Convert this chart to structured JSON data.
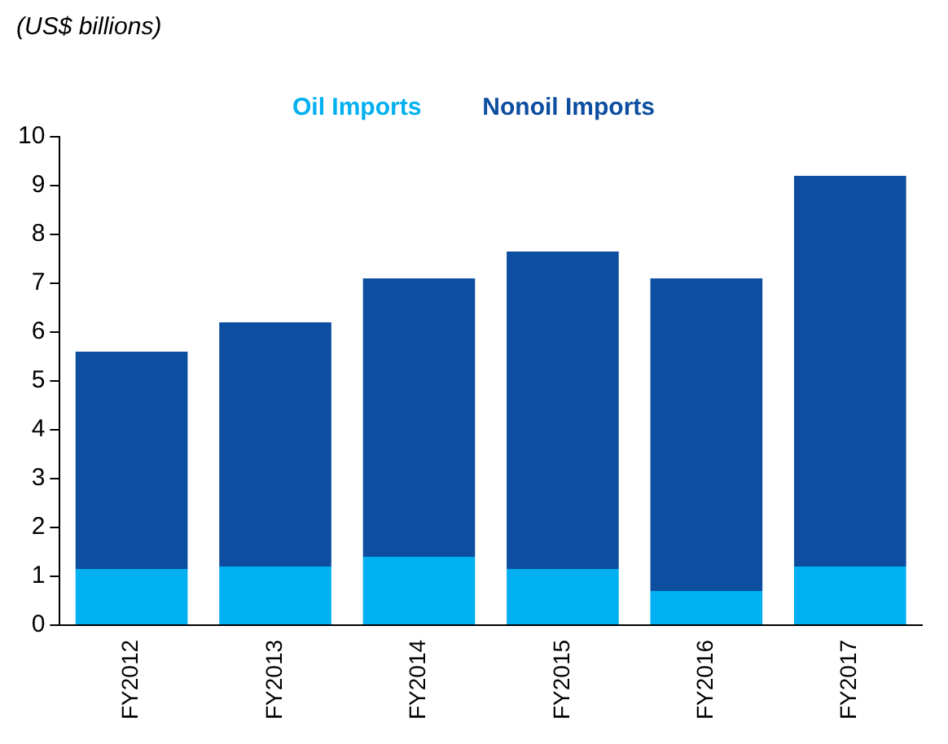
{
  "chart_data": {
    "type": "bar",
    "ylabel": "(US$ billions)",
    "stacked": true,
    "legend": "top",
    "grid": false,
    "categories": [
      "FY2012",
      "FY2013",
      "FY2014",
      "FY2015",
      "FY2016",
      "FY2017"
    ],
    "series": [
      {
        "name": "Oil Imports",
        "color": "#00b0f0",
        "values": [
          1.15,
          1.2,
          1.4,
          1.15,
          0.7,
          1.2
        ]
      },
      {
        "name": "Nonoil Imports",
        "color": "#0d4ea0",
        "values": [
          4.45,
          5.0,
          5.7,
          6.5,
          6.4,
          8.0
        ]
      }
    ],
    "ylim": [
      0,
      10
    ],
    "yticks": [
      0,
      1,
      2,
      3,
      4,
      5,
      6,
      7,
      8,
      9,
      10
    ]
  }
}
